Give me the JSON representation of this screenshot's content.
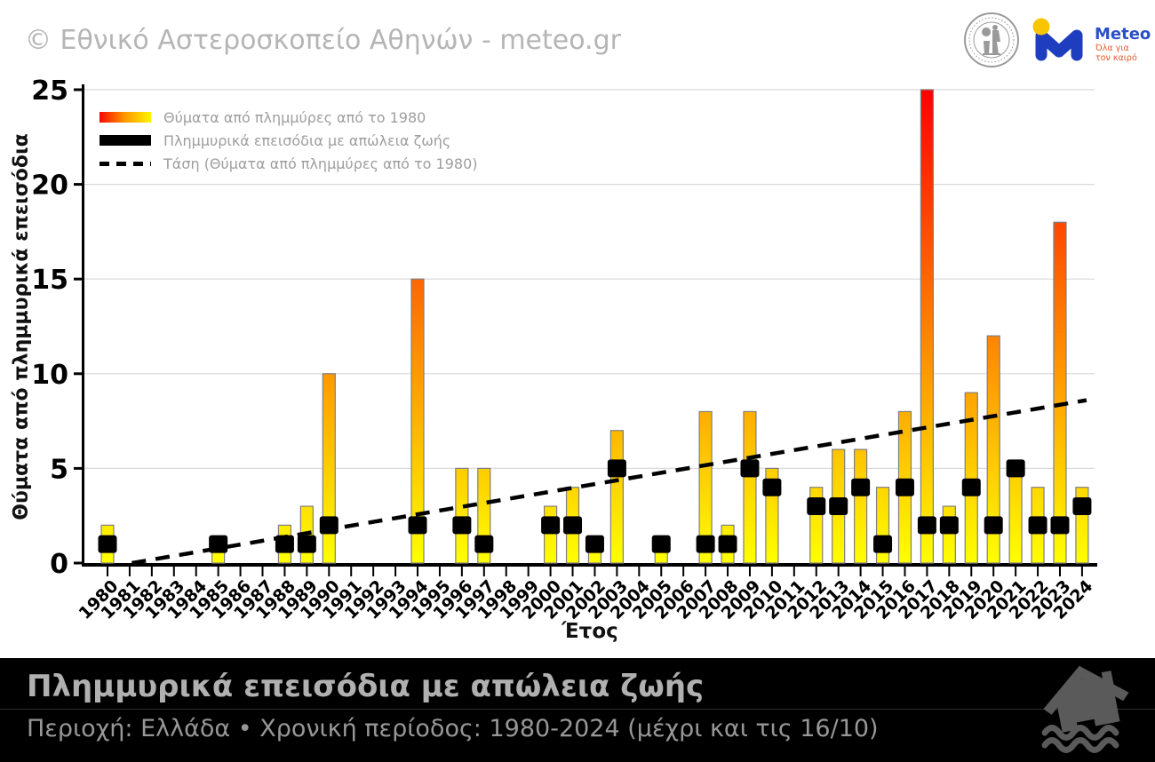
{
  "header": {
    "copyright": "© Εθνικό Αστεροσκοπείο Αθηνών - meteo.gr",
    "meteo": {
      "name": "Meteo",
      "tagline_line1": "Όλα για",
      "tagline_line2": "τον καιρό"
    }
  },
  "chart": {
    "y_title": "Θύματα από πλημμυρικά επεισόδια",
    "x_title": "Έτος",
    "legend": [
      {
        "swatch": "red-yellow-gradient-bar",
        "label": "Θύματα από πλημμύρες από το 1980"
      },
      {
        "swatch": "black-bar",
        "label": "Πλημμυρικά επεισόδια με απώλεια ζωής"
      },
      {
        "swatch": "black-dashed-line",
        "label": "Τάση (Θύματα από πλημμύρες από το 1980)"
      }
    ]
  },
  "chart_data": {
    "type": "bar",
    "title": "Πλημμυρικά επεισόδια με απώλεια ζωής",
    "xlabel": "Έτος",
    "ylabel": "Θύματα από πλημμυρικά επεισόδια",
    "ylim": [
      0,
      25
    ],
    "y_ticks": [
      0,
      5,
      10,
      15,
      20,
      25
    ],
    "grid": "horizontal",
    "legend_position": "top-left",
    "categories": [
      1980,
      1981,
      1982,
      1983,
      1984,
      1985,
      1986,
      1987,
      1988,
      1989,
      1990,
      1991,
      1992,
      1993,
      1994,
      1995,
      1996,
      1997,
      1998,
      1999,
      2000,
      2001,
      2002,
      2003,
      2004,
      2005,
      2006,
      2007,
      2008,
      2009,
      2010,
      2011,
      2012,
      2013,
      2014,
      2015,
      2016,
      2017,
      2018,
      2019,
      2020,
      2021,
      2022,
      2023,
      2024
    ],
    "series": [
      {
        "name": "Θύματα από πλημμύρες από το 1980",
        "type": "bar",
        "values": [
          2,
          0,
          0,
          0,
          0,
          1,
          0,
          0,
          2,
          3,
          10,
          0,
          0,
          0,
          15,
          0,
          5,
          5,
          0,
          0,
          3,
          4,
          1,
          7,
          0,
          1,
          0,
          8,
          2,
          8,
          5,
          0,
          4,
          6,
          6,
          4,
          8,
          25,
          3,
          9,
          12,
          5,
          4,
          18,
          4
        ]
      },
      {
        "name": "Πλημμυρικά επεισόδια με απώλεια ζωής",
        "type": "square-marker",
        "values": [
          1,
          0,
          0,
          0,
          0,
          1,
          0,
          0,
          1,
          1,
          2,
          0,
          0,
          0,
          2,
          0,
          2,
          1,
          0,
          0,
          2,
          2,
          1,
          5,
          0,
          1,
          0,
          1,
          1,
          5,
          4,
          0,
          3,
          3,
          4,
          1,
          4,
          2,
          2,
          4,
          2,
          5,
          2,
          2,
          3
        ]
      }
    ],
    "trend": {
      "name": "Τάση (Θύματα από πλημμύρες από το 1980)",
      "start_year": 1981.1,
      "start_value": 0,
      "end_year": 2024.2,
      "end_value": 8.6
    },
    "colors": {
      "bar_gradient_bottom": "#ffff00",
      "bar_gradient_top": "#ff0000",
      "bar_outline": "#7f7f7f",
      "episode_marker": "#000000",
      "trend_line": "#000000",
      "gridline": "#d9d9d9"
    }
  },
  "footer": {
    "title": "Πλημμυρικά επεισόδια με απώλεια ζωής",
    "subtitle": "Περιοχή: Ελλάδα • Χρονική περίοδος: 1980-2024 (μέχρι και τις 16/10)"
  }
}
